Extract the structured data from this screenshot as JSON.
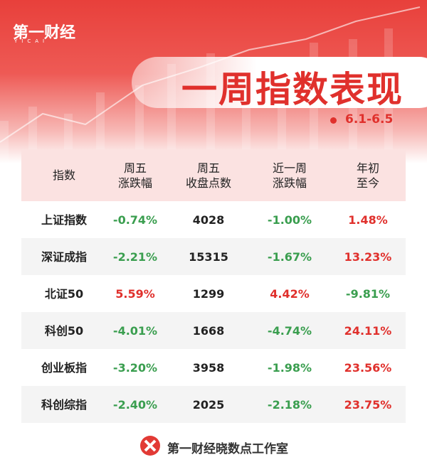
{
  "header": {
    "logo": "第一财经",
    "logo_sub": "YICAI",
    "title": "一周指数表现",
    "date": "6.1-6.5"
  },
  "table": {
    "columns": [
      [
        "指数"
      ],
      [
        "周五",
        "涨跌幅"
      ],
      [
        "周五",
        "收盘点数"
      ],
      [
        "近一周",
        "涨跌幅"
      ],
      [
        "年初",
        "至今"
      ]
    ],
    "rows": [
      [
        "上证指数",
        "-0.74%",
        "4028",
        "-1.00%",
        "1.48%"
      ],
      [
        "深证成指",
        "-2.21%",
        "15315",
        "-1.67%",
        "13.23%"
      ],
      [
        "北证50",
        "5.59%",
        "1299",
        "4.42%",
        "-9.81%"
      ],
      [
        "科创50",
        "-4.01%",
        "1668",
        "-4.74%",
        "24.11%"
      ],
      [
        "创业板指",
        "-3.20%",
        "3958",
        "-1.98%",
        "23.56%"
      ],
      [
        "科创综指",
        "-2.40%",
        "2025",
        "-2.18%",
        "23.75%"
      ]
    ]
  },
  "footer": "第一财经晓数点工作室"
}
